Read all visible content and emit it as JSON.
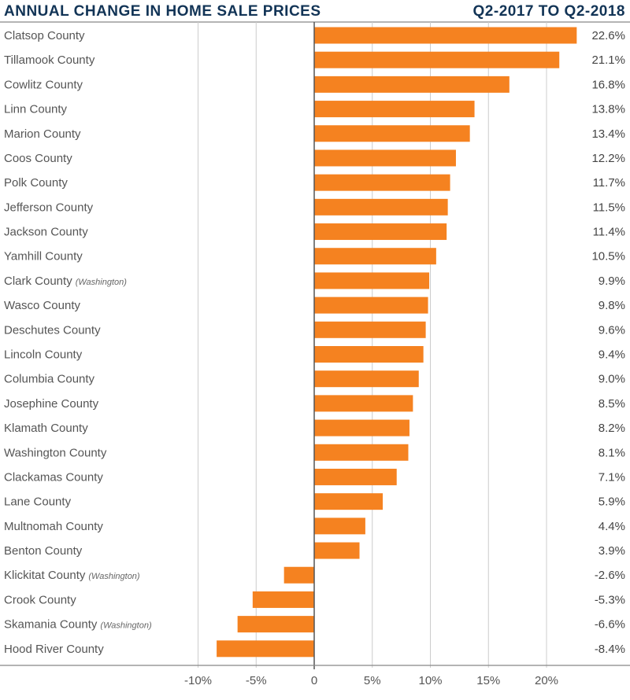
{
  "chart_data": {
    "type": "bar",
    "orientation": "horizontal",
    "title": "ANNUAL CHANGE IN HOME SALE PRICES",
    "subtitle": "Q2-2017 TO Q2-2018",
    "bar_color": "#F58220",
    "categories": [
      {
        "name": "Clatsop County",
        "note": ""
      },
      {
        "name": "Tillamook County",
        "note": ""
      },
      {
        "name": "Cowlitz County",
        "note": ""
      },
      {
        "name": "Linn County",
        "note": ""
      },
      {
        "name": "Marion County",
        "note": ""
      },
      {
        "name": "Coos County",
        "note": ""
      },
      {
        "name": "Polk County",
        "note": ""
      },
      {
        "name": "Jefferson County",
        "note": ""
      },
      {
        "name": "Jackson County",
        "note": ""
      },
      {
        "name": "Yamhill County",
        "note": ""
      },
      {
        "name": "Clark County",
        "note": "(Washington)"
      },
      {
        "name": "Wasco County",
        "note": ""
      },
      {
        "name": "Deschutes County",
        "note": ""
      },
      {
        "name": "Lincoln County",
        "note": ""
      },
      {
        "name": "Columbia County",
        "note": ""
      },
      {
        "name": "Josephine County",
        "note": ""
      },
      {
        "name": "Klamath County",
        "note": ""
      },
      {
        "name": "Washington County",
        "note": ""
      },
      {
        "name": "Clackamas County",
        "note": ""
      },
      {
        "name": "Lane County",
        "note": ""
      },
      {
        "name": "Multnomah County",
        "note": ""
      },
      {
        "name": "Benton County",
        "note": ""
      },
      {
        "name": "Klickitat County",
        "note": "(Washington)"
      },
      {
        "name": "Crook County",
        "note": ""
      },
      {
        "name": "Skamania County",
        "note": "(Washington)"
      },
      {
        "name": "Hood River County",
        "note": ""
      }
    ],
    "values": [
      22.6,
      21.1,
      16.8,
      13.8,
      13.4,
      12.2,
      11.7,
      11.5,
      11.4,
      10.5,
      9.9,
      9.8,
      9.6,
      9.4,
      9.0,
      8.5,
      8.2,
      8.1,
      7.1,
      5.9,
      4.4,
      3.9,
      -2.6,
      -5.3,
      -6.6,
      -8.4
    ],
    "value_labels": [
      "22.6%",
      "21.1%",
      "16.8%",
      "13.8%",
      "13.4%",
      "12.2%",
      "11.7%",
      "11.5%",
      "11.4%",
      "10.5%",
      "9.9%",
      "9.8%",
      "9.6%",
      "9.4%",
      "9.0%",
      "8.5%",
      "8.2%",
      "8.1%",
      "7.1%",
      "5.9%",
      "4.4%",
      "3.9%",
      "-2.6%",
      "-5.3%",
      "-6.6%",
      "-8.4%"
    ],
    "xticks": [
      -10,
      -5,
      0,
      5,
      10,
      15,
      20
    ],
    "xtick_labels": [
      "-10%",
      "-5%",
      "0",
      "5%",
      "10%",
      "15%",
      "20%"
    ],
    "xlim": [
      -13,
      25
    ],
    "grid": true,
    "xlabel": "",
    "ylabel": ""
  }
}
